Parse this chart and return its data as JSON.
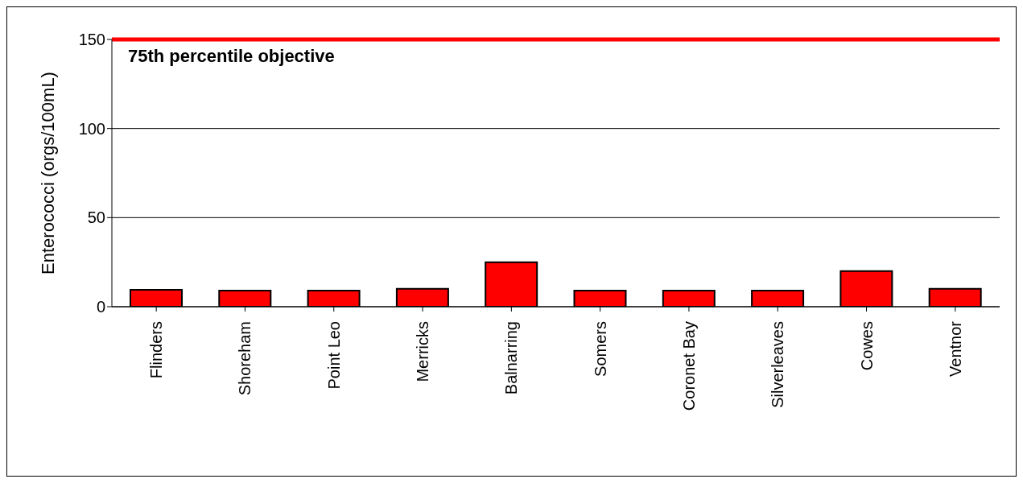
{
  "chart_data": {
    "type": "bar",
    "ylabel": "Enterococci (orgs/100mL)",
    "categories": [
      "Flinders",
      "Shoreham",
      "Point Leo",
      "Merricks",
      "Balnarring",
      "Somers",
      "Coronet Bay",
      "Silverleaves",
      "Cowes",
      "Ventnor"
    ],
    "values": [
      9.5,
      9,
      9,
      10,
      25,
      9,
      9,
      9,
      20,
      10
    ],
    "color": "#ff0000",
    "ylim": [
      0,
      150
    ],
    "yticks": [
      0,
      50,
      100,
      150
    ],
    "grid": "y",
    "ref_lines": [
      {
        "axis": "y",
        "value": 150,
        "label": "75th percentile objective",
        "color": "#ff0000"
      }
    ]
  }
}
